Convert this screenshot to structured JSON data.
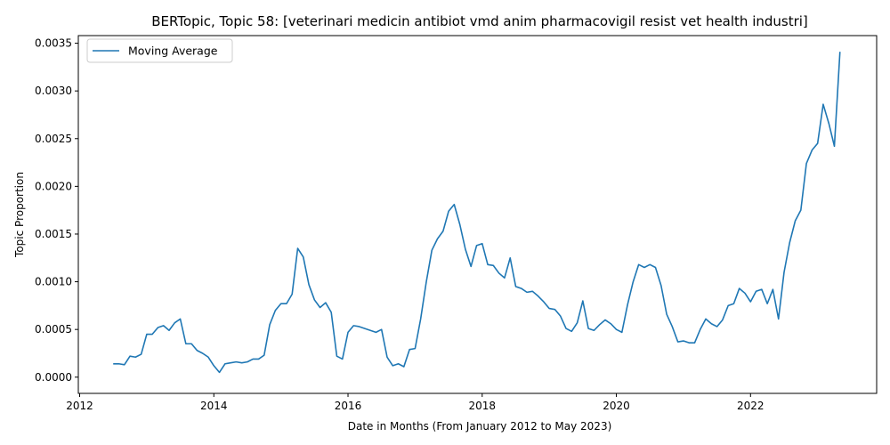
{
  "chart_data": {
    "type": "line",
    "title": "BERTopic, Topic 58: [veterinari medicin antibiot vmd anim pharmacovigil resist vet health industri]",
    "xlabel": "Date in Months (From January 2012 to May 2023)",
    "ylabel": "Topic Proportion",
    "xlim": [
      2011.98,
      2023.88
    ],
    "ylim": [
      -0.00017,
      0.00358
    ],
    "x_ticks": [
      2012,
      2014,
      2016,
      2018,
      2020,
      2022
    ],
    "y_ticks": [
      "0.0000",
      "0.0005",
      "0.0010",
      "0.0015",
      "0.0020",
      "0.0025",
      "0.0030",
      "0.0035"
    ],
    "legend_position": "upper-left",
    "grid": false,
    "series": [
      {
        "name": "Moving Average",
        "color": "#1f77b4",
        "x": [
          2012.5,
          2012.583,
          2012.667,
          2012.75,
          2012.833,
          2012.917,
          2013.0,
          2013.083,
          2013.167,
          2013.25,
          2013.333,
          2013.417,
          2013.5,
          2013.583,
          2013.667,
          2013.75,
          2013.833,
          2013.917,
          2014.0,
          2014.083,
          2014.167,
          2014.25,
          2014.333,
          2014.417,
          2014.5,
          2014.583,
          2014.667,
          2014.75,
          2014.833,
          2014.917,
          2015.0,
          2015.083,
          2015.167,
          2015.25,
          2015.333,
          2015.417,
          2015.5,
          2015.583,
          2015.667,
          2015.75,
          2015.833,
          2015.917,
          2016.0,
          2016.083,
          2016.167,
          2016.25,
          2016.333,
          2016.417,
          2016.5,
          2016.583,
          2016.667,
          2016.75,
          2016.833,
          2016.917,
          2017.0,
          2017.083,
          2017.167,
          2017.25,
          2017.333,
          2017.417,
          2017.5,
          2017.583,
          2017.667,
          2017.75,
          2017.833,
          2017.917,
          2018.0,
          2018.083,
          2018.167,
          2018.25,
          2018.333,
          2018.417,
          2018.5,
          2018.583,
          2018.667,
          2018.75,
          2018.833,
          2018.917,
          2019.0,
          2019.083,
          2019.167,
          2019.25,
          2019.333,
          2019.417,
          2019.5,
          2019.583,
          2019.667,
          2019.75,
          2019.833,
          2019.917,
          2020.0,
          2020.083,
          2020.167,
          2020.25,
          2020.333,
          2020.417,
          2020.5,
          2020.583,
          2020.667,
          2020.75,
          2020.833,
          2020.917,
          2021.0,
          2021.083,
          2021.167,
          2021.25,
          2021.333,
          2021.417,
          2021.5,
          2021.583,
          2021.667,
          2021.75,
          2021.833,
          2021.917,
          2022.0,
          2022.083,
          2022.167,
          2022.25,
          2022.333,
          2022.417,
          2022.5,
          2022.583,
          2022.667,
          2022.75,
          2022.833,
          2022.917,
          2023.0,
          2023.083,
          2023.167,
          2023.25,
          2023.333
        ],
        "values": [
          0.00014,
          0.00014,
          0.00013,
          0.00022,
          0.00021,
          0.00024,
          0.00045,
          0.00045,
          0.00052,
          0.00054,
          0.00049,
          0.00057,
          0.00061,
          0.00035,
          0.00035,
          0.00028,
          0.00025,
          0.00021,
          0.00012,
          5e-05,
          0.00014,
          0.00015,
          0.00016,
          0.00015,
          0.00016,
          0.00019,
          0.00019,
          0.00023,
          0.00055,
          0.0007,
          0.00077,
          0.00077,
          0.00087,
          0.00135,
          0.00126,
          0.00097,
          0.00081,
          0.00073,
          0.00078,
          0.00068,
          0.00022,
          0.00019,
          0.00047,
          0.00054,
          0.00053,
          0.00051,
          0.00049,
          0.00047,
          0.0005,
          0.00021,
          0.00012,
          0.00014,
          0.00011,
          0.00029,
          0.0003,
          0.00061,
          0.001,
          0.00133,
          0.00145,
          0.00153,
          0.00174,
          0.00181,
          0.0016,
          0.00134,
          0.00116,
          0.00138,
          0.0014,
          0.00118,
          0.00117,
          0.00109,
          0.00104,
          0.00125,
          0.00095,
          0.00093,
          0.00089,
          0.0009,
          0.00085,
          0.00079,
          0.00072,
          0.00071,
          0.00064,
          0.00051,
          0.00048,
          0.00057,
          0.0008,
          0.00051,
          0.00049,
          0.00055,
          0.0006,
          0.00056,
          0.0005,
          0.00047,
          0.00076,
          0.001,
          0.00118,
          0.00115,
          0.00118,
          0.00115,
          0.00096,
          0.00066,
          0.00053,
          0.00037,
          0.00038,
          0.00036,
          0.00036,
          0.0005,
          0.00061,
          0.00056,
          0.00053,
          0.0006,
          0.00075,
          0.00077,
          0.00093,
          0.00088,
          0.00079,
          0.0009,
          0.00092,
          0.00077,
          0.00092,
          0.00061,
          0.0011,
          0.00141,
          0.00164,
          0.00175,
          0.00224,
          0.00238,
          0.00245,
          0.00286,
          0.00266,
          0.00242,
          0.00341
        ]
      }
    ]
  }
}
